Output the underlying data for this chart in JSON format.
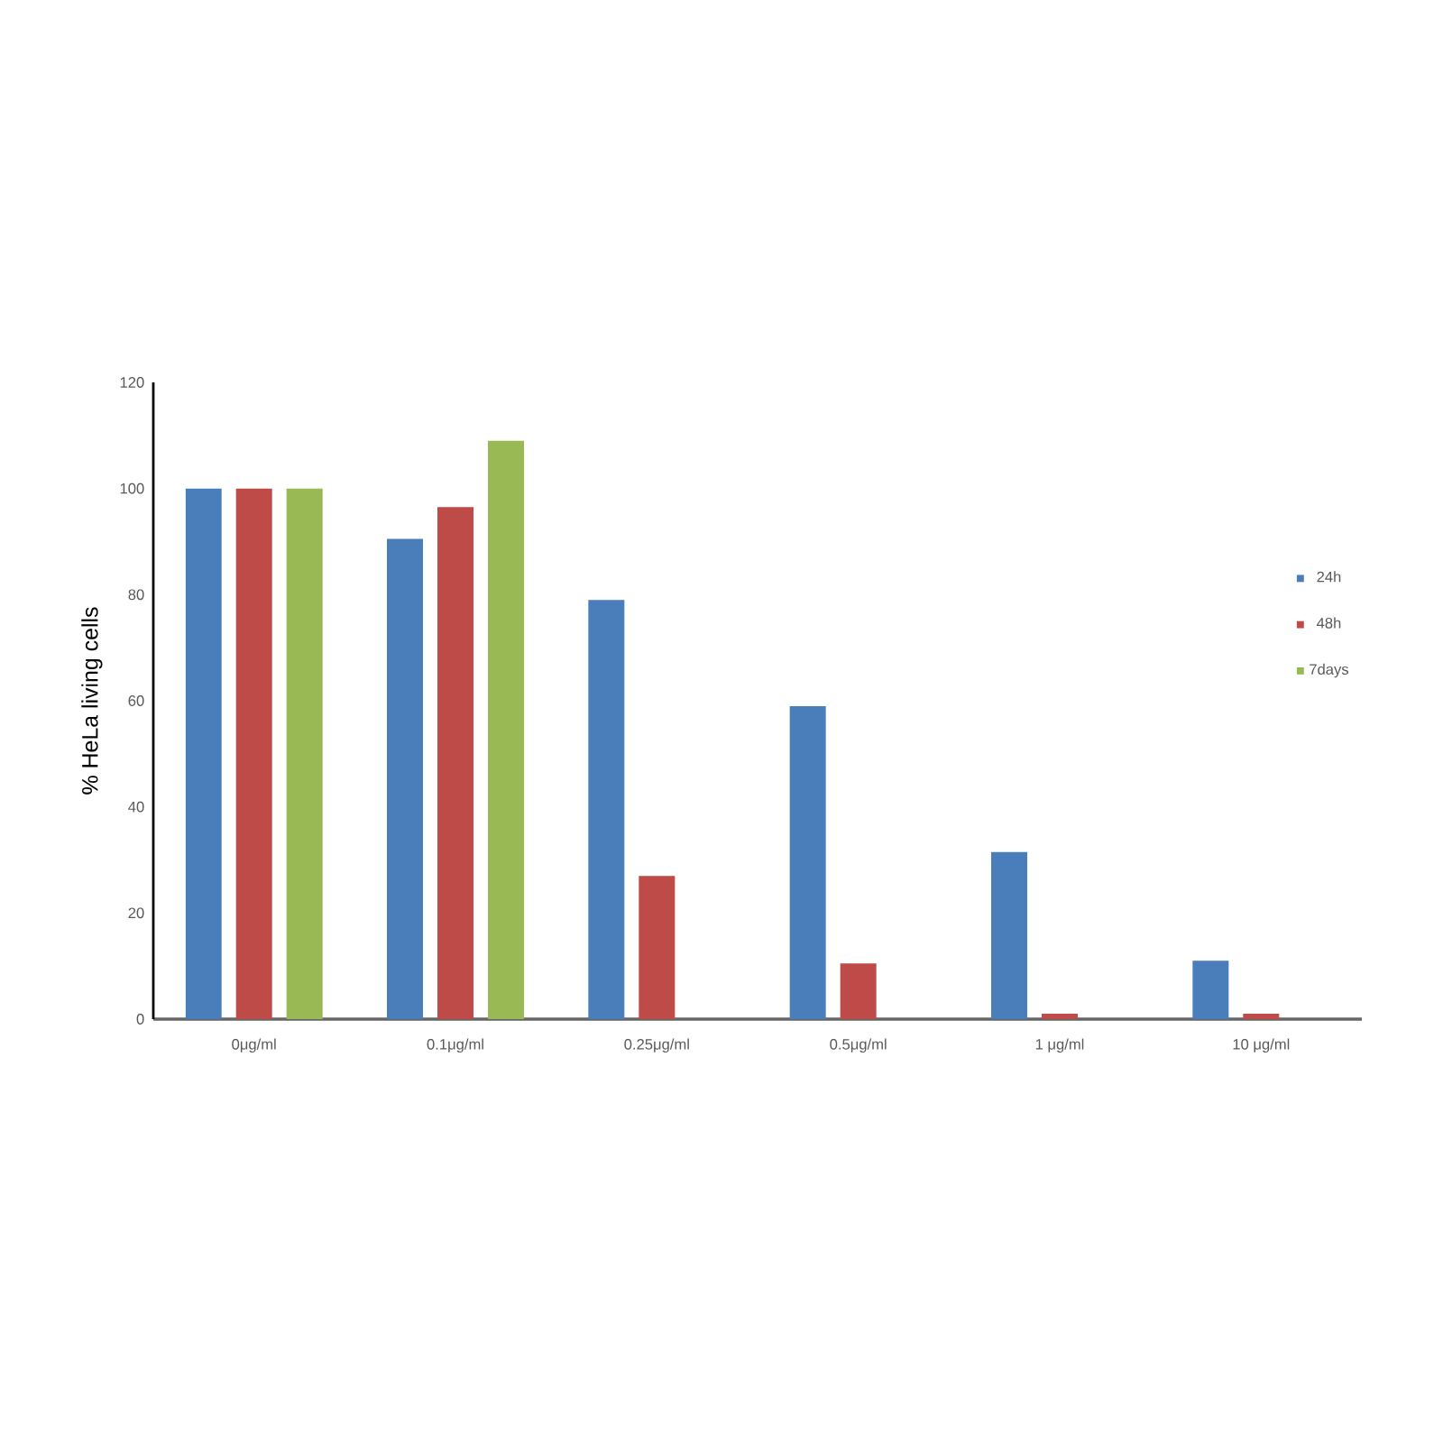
{
  "chart_data": {
    "type": "bar",
    "ylabel": "% HeLa living cells",
    "categories": [
      "0μg/ml",
      "0.1μg/ml",
      "0.25μg/ml",
      "0.5μg/ml",
      "1 μg/ml",
      "10 μg/ml"
    ],
    "series": [
      {
        "name": "24h",
        "color": "#4a7ebb",
        "values": [
          100,
          90.5,
          79,
          59,
          31.5,
          11
        ]
      },
      {
        "name": "48h",
        "color": "#be4b48",
        "values": [
          100,
          96.5,
          27,
          10.5,
          1,
          1
        ]
      },
      {
        "name": "7days",
        "color": "#98b954",
        "values": [
          100,
          109,
          null,
          null,
          null,
          null
        ]
      }
    ],
    "ylim": [
      0,
      120
    ],
    "yticks": [
      0,
      20,
      40,
      60,
      80,
      100,
      120
    ],
    "legend": "right"
  }
}
